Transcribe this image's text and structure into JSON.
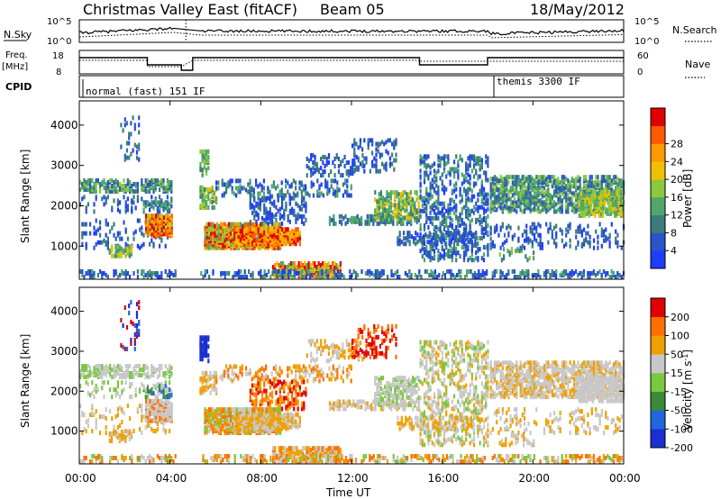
{
  "header": {
    "title": "Christmas Valley East (fitACF)",
    "beam": "Beam 05",
    "date": "18/May/2012"
  },
  "top_panels": {
    "nsky_label": "N.Sky",
    "nsky_ticks": [
      "10^5",
      "10^0"
    ],
    "nsearch_label": "N.Search",
    "nsearch_ticks": [
      "10^5",
      "10^0"
    ],
    "freq_label": "Freq.",
    "freq_unit": "[MHz]",
    "freq_ticks": [
      "18",
      "8"
    ],
    "nave_label": "Nave",
    "nave_ticks": [
      "60",
      "0"
    ],
    "cpid_label": "CPID",
    "cpid_modes": [
      "normal (fast) 151 IF",
      "themis 3300 IF"
    ]
  },
  "chart_data": [
    {
      "type": "heatmap",
      "name": "power",
      "ylabel": "Slant Range [km]",
      "xlabel": "Time UT",
      "x_ticks": [
        "00:00",
        "04:00",
        "08:00",
        "12:00",
        "16:00",
        "20:00",
        "00:00"
      ],
      "y_ticks": [
        "1000",
        "2000",
        "3000",
        "4000"
      ],
      "ylim": [
        180,
        4600
      ],
      "colorbar_label": "Power [dB]",
      "colorbar_ticks": [
        "4",
        "8",
        "12",
        "16",
        "20",
        "24",
        "28"
      ],
      "colorbar_colors": [
        "#1e3cff",
        "#2a55c8",
        "#3a7d7a",
        "#4fa86a",
        "#8cc840",
        "#f0c000",
        "#ff9900",
        "#ff5a00",
        "#e00000"
      ],
      "data_gap_hours": [
        [
          4.2,
          5.3
        ],
        [
          18.0,
          18.1
        ]
      ]
    },
    {
      "type": "heatmap",
      "name": "velocity",
      "ylabel": "Slant Range [km]",
      "xlabel": "Time UT",
      "x_ticks": [
        "00:00",
        "04:00",
        "08:00",
        "12:00",
        "16:00",
        "20:00",
        "00:00"
      ],
      "y_ticks": [
        "1000",
        "2000",
        "3000",
        "4000"
      ],
      "ylim": [
        180,
        4600
      ],
      "colorbar_label": "Velocity [m s",
      "colorbar_unit_sup": "-1",
      "colorbar_unit_end": "]",
      "colorbar_ticks": [
        "200",
        "100",
        "50",
        "15",
        "-15",
        "-50",
        "-100",
        "-200"
      ],
      "colorbar_colors": [
        "#1a2fd0",
        "#2266dd",
        "#3a8a3a",
        "#7ac840",
        "#c8c8c8",
        "#f0a000",
        "#ff7000",
        "#e00000"
      ]
    }
  ],
  "axis": {
    "xlabel": "Time UT"
  }
}
